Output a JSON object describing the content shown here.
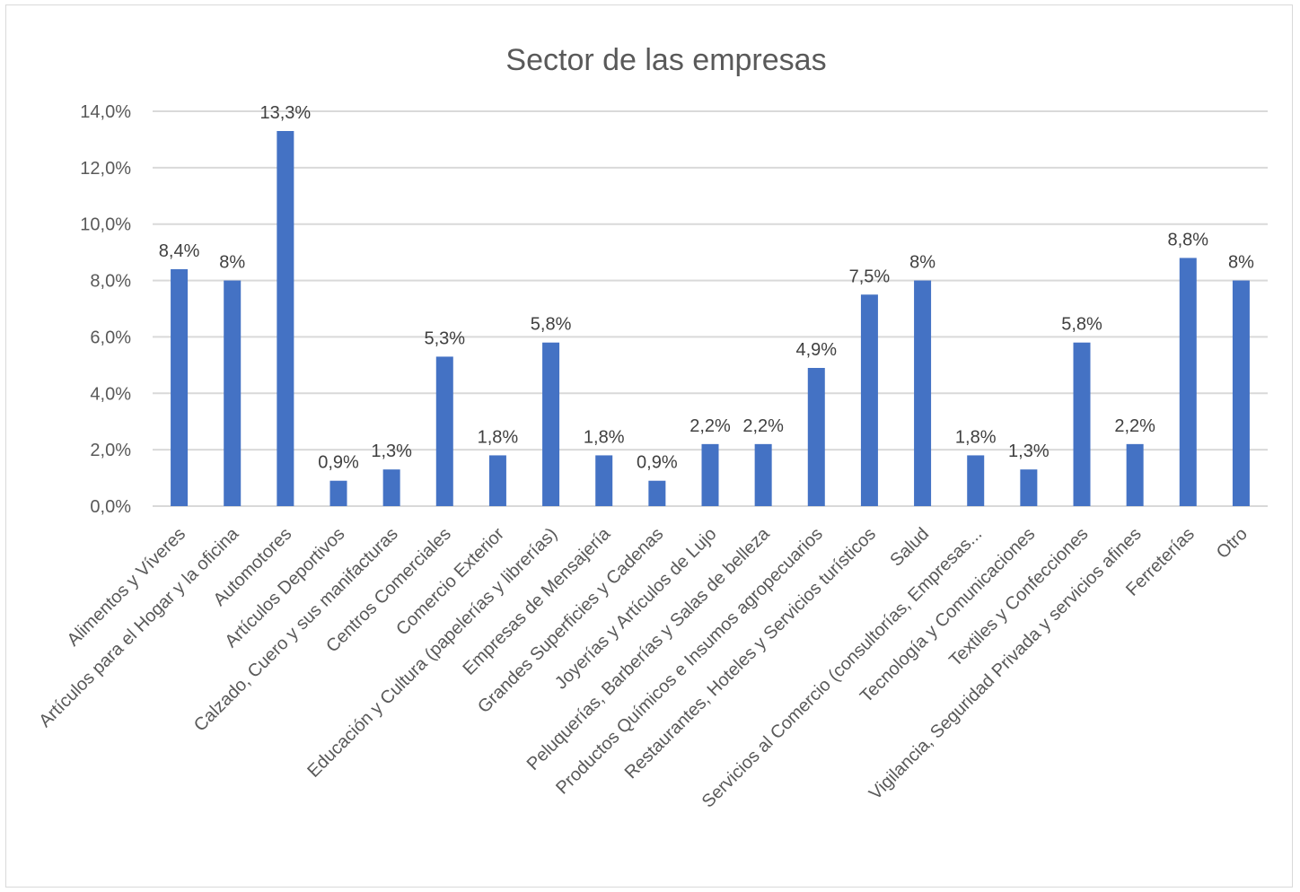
{
  "chart_data": {
    "type": "bar",
    "title": "Sector de las empresas",
    "xlabel": "",
    "ylabel": "",
    "ylim": [
      0,
      14
    ],
    "yticks": [
      0,
      2,
      4,
      6,
      8,
      10,
      12,
      14
    ],
    "ytick_labels": [
      "0,0%",
      "2,0%",
      "4,0%",
      "6,0%",
      "8,0%",
      "10,0%",
      "12,0%",
      "14,0%"
    ],
    "grid": true,
    "legend": "none",
    "bar_color": "#4472c4",
    "categories": [
      "Alimentos y Víveres",
      "Artículos para el Hogar y la oficina",
      "Automotores",
      "Artículos Deportivos",
      "Calzado, Cuero y sus manifacturas",
      "Centros Comerciales",
      "Comercio Exterior",
      "Educación y Cultura (papelerías y librerías)",
      "Empresas de Mensajería",
      "Grandes Superficies y Cadenas",
      "Joyerías y Artículos de Lujo",
      "Peluquerías, Barberías y Salas de belleza",
      "Productos Químicos e Insumos agropecuarios",
      "Restaurantes, Hoteles y Servicios turísticos",
      "Salud",
      "Servicios al Comercio (consultorías, Empresas...",
      "Tecnología y Comunicaciones",
      "Textiles y Confecciones",
      "Vigilancia, Seguridad Privada y servicios afines",
      "Ferreterías",
      "Otro"
    ],
    "values": [
      8.4,
      8,
      13.3,
      0.9,
      1.3,
      5.3,
      1.8,
      5.8,
      1.8,
      0.9,
      2.2,
      2.2,
      4.9,
      7.5,
      8,
      1.8,
      1.3,
      5.8,
      2.2,
      8.8,
      8
    ],
    "data_labels": [
      "8,4%",
      "8%",
      "13,3%",
      "0,9%",
      "1,3%",
      "5,3%",
      "1,8%",
      "5,8%",
      "1,8%",
      "0,9%",
      "2,2%",
      "2,2%",
      "4,9%",
      "7,5%",
      "8%",
      "1,8%",
      "1,3%",
      "5,8%",
      "2,2%",
      "8,8%",
      "8%"
    ]
  }
}
